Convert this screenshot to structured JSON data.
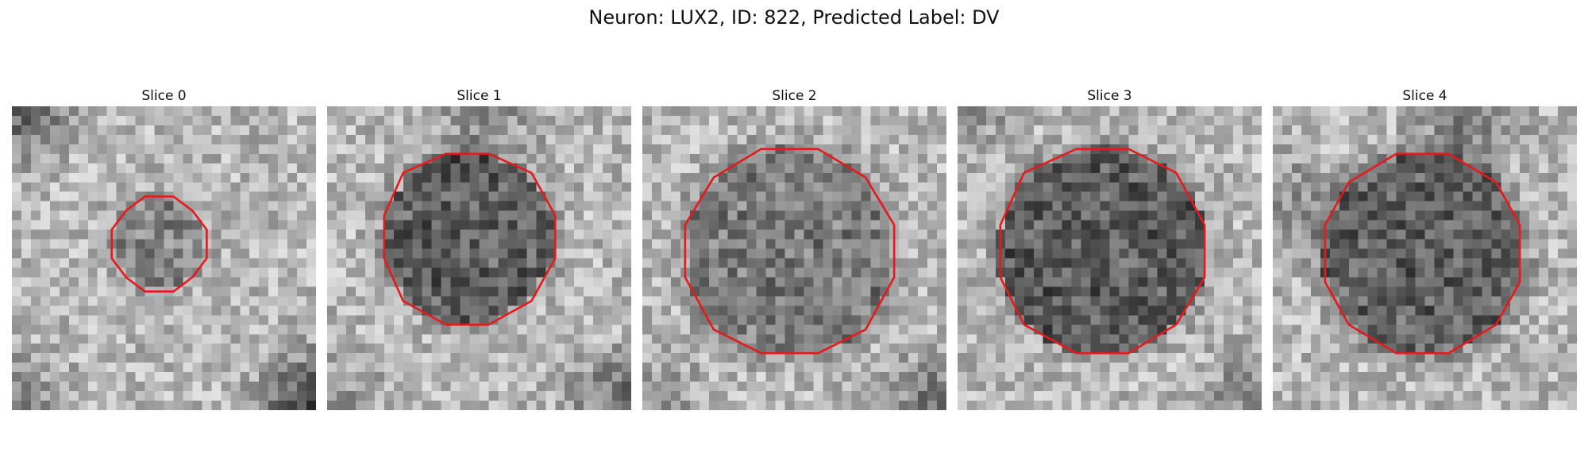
{
  "figure": {
    "title": "Neuron: LUX2, ID: 822, Predicted Label: DV",
    "outline_color": "#e41a1c",
    "colormap": "gray"
  },
  "panels": [
    {
      "title": "Slice 0"
    },
    {
      "title": "Slice 1"
    },
    {
      "title": "Slice 2"
    },
    {
      "title": "Slice 3"
    },
    {
      "title": "Slice 4"
    }
  ]
}
